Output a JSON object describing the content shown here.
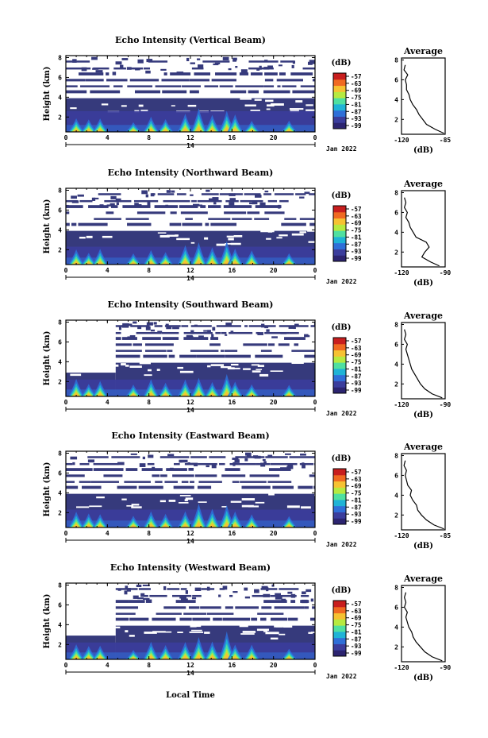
{
  "chart_data": [
    {
      "type": "heatmap",
      "title": "Echo Intensity (Vertical Beam)",
      "ylabel": "Height (km)",
      "x_ticks": [
        "0",
        "4",
        "8",
        "12",
        "16",
        "20",
        "0"
      ],
      "y_ticks": [
        "2",
        "4",
        "6",
        "8"
      ],
      "x_range": [
        0,
        24
      ],
      "y_range": [
        0.5,
        8.2
      ],
      "date_center": "14",
      "date_label": "Jan 2022",
      "colorbar_unit": "(dB)",
      "colorbar_ticks": [
        "-57",
        "-63",
        "-69",
        "-75",
        "-81",
        "-87",
        "-93",
        "-99"
      ],
      "profile_title": "Average",
      "profile_xlabel": "(dB)",
      "profile_xticks": [
        "-120",
        "-85"
      ],
      "profile_yticks": [
        "2",
        "4",
        "6",
        "8"
      ],
      "profile_xlim": [
        -120,
        -85
      ],
      "profile": {
        "h": [
          0.6,
          1.0,
          1.5,
          2.0,
          2.5,
          3.0,
          3.5,
          4.0,
          4.5,
          5.0,
          5.5,
          6.0,
          6.5,
          7.0,
          7.5
        ],
        "db": [
          -86,
          -93,
          -100,
          -103,
          -106,
          -108,
          -111,
          -113,
          -114,
          -116,
          -116,
          -117,
          -115,
          -118,
          -117
        ]
      },
      "features": {
        "low_start": 0,
        "low_end": 24,
        "haze_top": 2.6,
        "gap_start": null
      }
    },
    {
      "type": "heatmap",
      "title": "Echo Intensity (Northward Beam)",
      "ylabel": "Height (km)",
      "x_ticks": [
        "0",
        "4",
        "8",
        "12",
        "16",
        "20",
        "0"
      ],
      "y_ticks": [
        "2",
        "4",
        "6",
        "8"
      ],
      "x_range": [
        0,
        24
      ],
      "y_range": [
        0.5,
        8.2
      ],
      "date_center": "14",
      "date_label": "Jan 2022",
      "colorbar_unit": "(dB)",
      "colorbar_ticks": [
        "-57",
        "-63",
        "-69",
        "-75",
        "-81",
        "-87",
        "-93",
        "-99"
      ],
      "profile_title": "Average",
      "profile_xlabel": "(dB)",
      "profile_xticks": [
        "-120",
        "-90"
      ],
      "profile_yticks": [
        "2",
        "4",
        "6",
        "8"
      ],
      "profile_xlim": [
        -120,
        -90
      ],
      "profile": {
        "h": [
          0.6,
          1.0,
          1.5,
          2.0,
          2.5,
          3.0,
          3.5,
          4.0,
          4.5,
          5.0,
          5.5,
          6.0,
          6.5,
          7.0,
          7.5
        ],
        "db": [
          -94,
          -100,
          -106,
          -104,
          -101,
          -103,
          -110,
          -112,
          -114,
          -115,
          -117,
          -116,
          -118,
          -117,
          -118
        ]
      },
      "features": {
        "low_start": 0,
        "low_end": 24,
        "haze_top": 2.3,
        "gap_start": null
      }
    },
    {
      "type": "heatmap",
      "title": "Echo Intensity (Southward Beam)",
      "ylabel": "Height (km)",
      "x_ticks": [
        "0",
        "4",
        "8",
        "12",
        "16",
        "20",
        "0"
      ],
      "y_ticks": [
        "2",
        "4",
        "6",
        "8"
      ],
      "x_range": [
        0,
        24
      ],
      "y_range": [
        0.5,
        8.2
      ],
      "date_center": "14",
      "date_label": "Jan 2022",
      "colorbar_unit": "(dB)",
      "colorbar_ticks": [
        "-57",
        "-63",
        "-69",
        "-75",
        "-81",
        "-87",
        "-93",
        "-99"
      ],
      "profile_title": "Average",
      "profile_xlabel": "(dB)",
      "profile_xticks": [
        "-120",
        "-90"
      ],
      "profile_yticks": [
        "2",
        "4",
        "6",
        "8"
      ],
      "profile_xlim": [
        -120,
        -90
      ],
      "profile": {
        "h": [
          0.6,
          1.0,
          1.5,
          2.0,
          2.5,
          3.0,
          3.5,
          4.0,
          4.5,
          5.0,
          5.5,
          6.0,
          6.5,
          7.0,
          7.5
        ],
        "db": [
          -92,
          -99,
          -104,
          -107,
          -109,
          -111,
          -113,
          -114,
          -115,
          -116,
          -117,
          -116,
          -118,
          -117,
          -118
        ]
      },
      "features": {
        "low_start": 0,
        "low_end": 24,
        "haze_top": 2.2,
        "gap_start": 4.8
      }
    },
    {
      "type": "heatmap",
      "title": "Echo Intensity (Eastward Beam)",
      "ylabel": "Height (km)",
      "x_ticks": [
        "0",
        "4",
        "8",
        "12",
        "16",
        "20",
        "0"
      ],
      "y_ticks": [
        "2",
        "4",
        "6",
        "8"
      ],
      "x_range": [
        0,
        24
      ],
      "y_range": [
        0.5,
        8.2
      ],
      "date_center": "14",
      "date_label": "Jan 2022",
      "colorbar_unit": "(dB)",
      "colorbar_ticks": [
        "-57",
        "-63",
        "-69",
        "-75",
        "-81",
        "-87",
        "-93",
        "-99"
      ],
      "profile_title": "Average",
      "profile_xlabel": "(dB)",
      "profile_xticks": [
        "-120",
        "-85"
      ],
      "profile_yticks": [
        "2",
        "4",
        "6",
        "8"
      ],
      "profile_xlim": [
        -120,
        -85
      ],
      "profile": {
        "h": [
          0.6,
          1.0,
          1.5,
          2.0,
          2.5,
          3.0,
          3.5,
          4.0,
          4.5,
          5.0,
          5.5,
          6.0,
          6.5,
          7.0,
          7.5
        ],
        "db": [
          -86,
          -94,
          -100,
          -104,
          -107,
          -108,
          -111,
          -113,
          -112,
          -115,
          -116,
          -117,
          -116,
          -118,
          -117
        ]
      },
      "features": {
        "low_start": 0,
        "low_end": 24,
        "haze_top": 2.3,
        "gap_start": null
      }
    },
    {
      "type": "heatmap",
      "title": "Echo Intensity (Westward Beam)",
      "ylabel": "Height (km)",
      "x_ticks": [
        "0",
        "4",
        "8",
        "12",
        "16",
        "20",
        "0"
      ],
      "y_ticks": [
        "2",
        "4",
        "6",
        "8"
      ],
      "x_range": [
        0,
        24
      ],
      "y_range": [
        0.5,
        8.2
      ],
      "date_center": "14",
      "date_label": "Jan 2022",
      "colorbar_unit": "(dB)",
      "colorbar_ticks": [
        "-57",
        "-63",
        "-69",
        "-75",
        "-81",
        "-87",
        "-93",
        "-99"
      ],
      "profile_title": "Average",
      "profile_xlabel": "(dB)",
      "profile_xticks": [
        "-120",
        "-90"
      ],
      "profile_yticks": [
        "2",
        "4",
        "6",
        "8"
      ],
      "profile_xlim": [
        -120,
        -90
      ],
      "profile": {
        "h": [
          0.6,
          1.0,
          1.5,
          2.0,
          2.5,
          3.0,
          3.5,
          4.0,
          4.5,
          5.0,
          5.5,
          6.0,
          6.5,
          7.0,
          7.5
        ],
        "db": [
          -92,
          -99,
          -104,
          -107,
          -110,
          -112,
          -113,
          -115,
          -116,
          -117,
          -116,
          -118,
          -117,
          -118,
          -117
        ]
      },
      "features": {
        "low_start": 0,
        "low_end": 24,
        "haze_top": 2.2,
        "gap_start": 4.8
      }
    }
  ],
  "xlabel": "Local Time",
  "colors": {
    "background": "#ffffff",
    "echo_base": "#363a7c",
    "colormap": [
      "#2c2470",
      "#3b3d9c",
      "#2f6fd8",
      "#1fb3d6",
      "#4fe0a0",
      "#b6ea40",
      "#f6c232",
      "#f06a22",
      "#c81e1e"
    ]
  }
}
